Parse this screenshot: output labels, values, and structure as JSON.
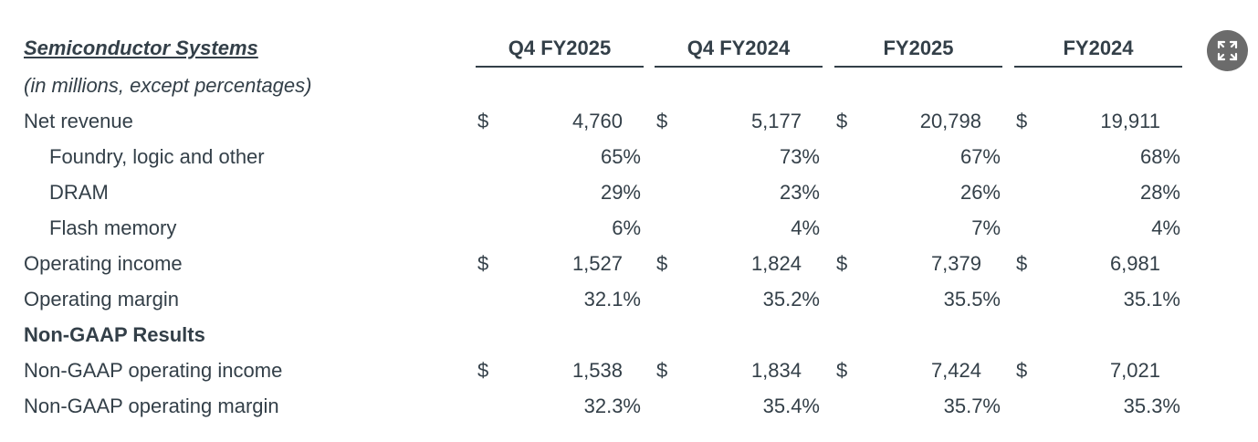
{
  "table": {
    "title": "Semiconductor Systems",
    "subtitle": "(in millions, except percentages)",
    "columns": [
      "Q4 FY2025",
      "Q4 FY2024",
      "FY2025",
      "FY2024"
    ],
    "rows": [
      {
        "label": "Net revenue",
        "style": "normal",
        "currency": "$",
        "values": [
          "4,760",
          "5,177",
          "20,798",
          "19,911"
        ],
        "kind": "money"
      },
      {
        "label": "Foundry, logic and other",
        "style": "indent",
        "currency": "",
        "values": [
          "65%",
          "73%",
          "67%",
          "68%"
        ],
        "kind": "pct"
      },
      {
        "label": "DRAM",
        "style": "indent",
        "currency": "",
        "values": [
          "29%",
          "23%",
          "26%",
          "28%"
        ],
        "kind": "pct"
      },
      {
        "label": "Flash memory",
        "style": "indent",
        "currency": "",
        "values": [
          "6%",
          "4%",
          "7%",
          "4%"
        ],
        "kind": "pct"
      },
      {
        "label": "Operating income",
        "style": "normal",
        "currency": "$",
        "values": [
          "1,527",
          "1,824",
          "7,379",
          "6,981"
        ],
        "kind": "money"
      },
      {
        "label": "Operating margin",
        "style": "normal",
        "currency": "",
        "values": [
          "32.1%",
          "35.2%",
          "35.5%",
          "35.1%"
        ],
        "kind": "pct"
      },
      {
        "label": "Non-GAAP Results",
        "style": "bold",
        "currency": "",
        "values": [],
        "kind": "section"
      },
      {
        "label": "Non-GAAP operating income",
        "style": "normal",
        "currency": "$",
        "values": [
          "1,538",
          "1,834",
          "7,424",
          "7,021"
        ],
        "kind": "money"
      },
      {
        "label": "Non-GAAP operating margin",
        "style": "normal",
        "currency": "",
        "values": [
          "32.3%",
          "35.4%",
          "35.7%",
          "35.3%"
        ],
        "kind": "pct"
      }
    ]
  },
  "controls": {
    "expand_icon": "expand-icon",
    "expand_bg": "#6b6b6b"
  },
  "colors": {
    "text": "#333f48"
  }
}
